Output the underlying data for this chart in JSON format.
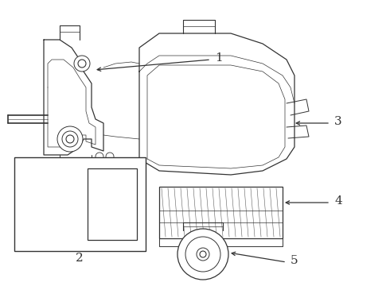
{
  "bg_color": "#ffffff",
  "line_color": "#333333",
  "lw": 0.8
}
